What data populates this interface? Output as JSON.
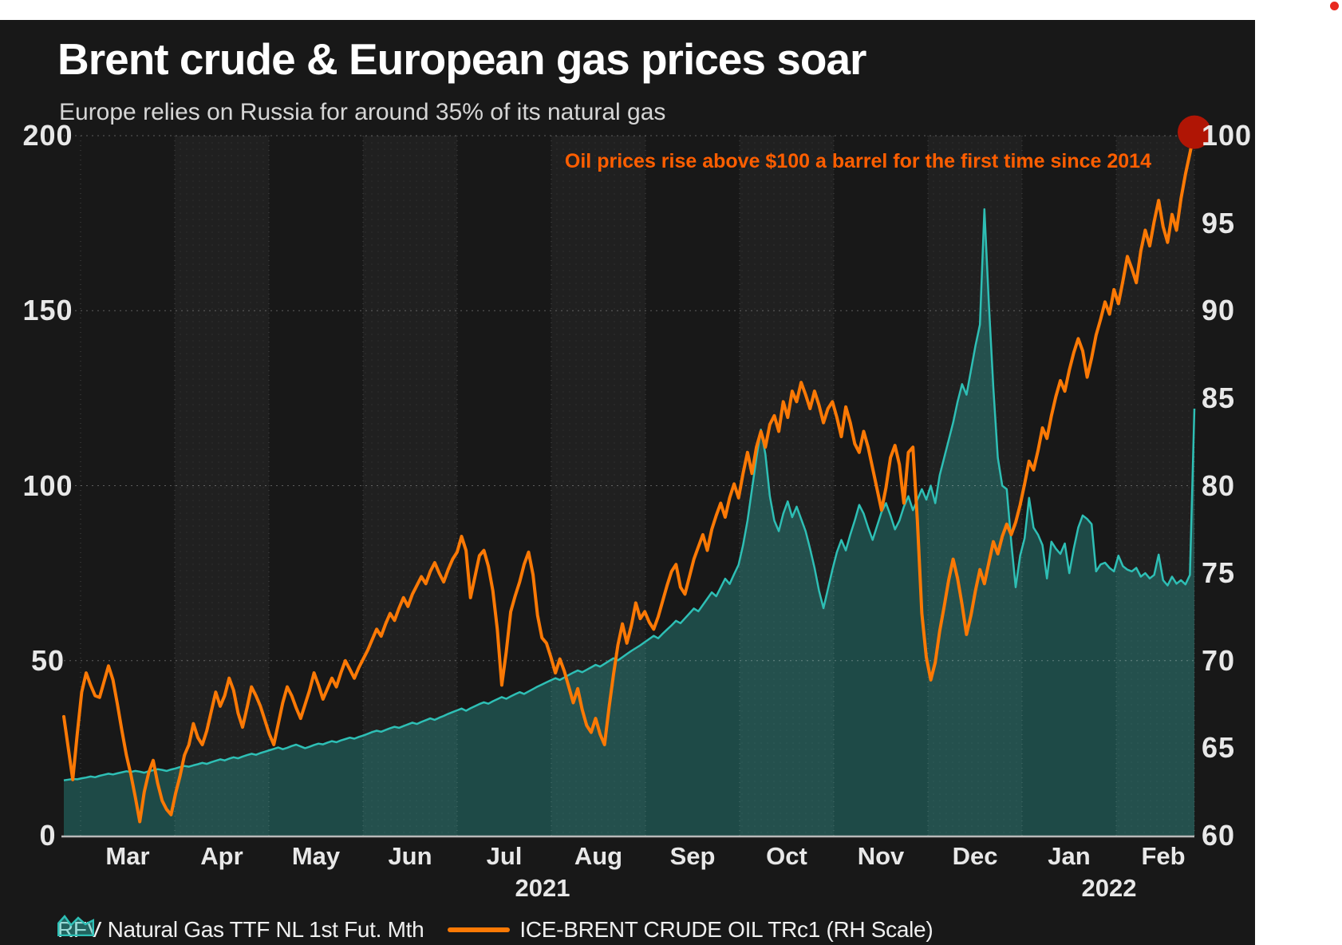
{
  "header": {
    "title": "Brent crude & European gas prices soar",
    "subtitle": "Europe relies on Russia for around 35% of its natural gas"
  },
  "annotation": {
    "text": "Oil prices rise above $100 a barrel for the first time since 2014",
    "color": "#ff5e00"
  },
  "record_indicator": {
    "color": "#e8281e"
  },
  "legend": {
    "items": [
      {
        "label": "RFV Natural Gas TTF NL 1st Fut. Mth",
        "swatch": "area-teal"
      },
      {
        "label": "ICE-BRENT CRUDE OIL TRc1 (RH Scale)",
        "swatch": "line-orange"
      }
    ]
  },
  "chart_data": {
    "type": "area+line",
    "title": "Brent crude & European gas prices soar",
    "subtitle": "Europe relies on Russia for around 35% of its natural gas",
    "background": "#181818",
    "grid": {
      "horizontal_dashed": true,
      "vertical_dashed": true,
      "alternating_month_bands": true
    },
    "x_axis": {
      "months": [
        "Mar",
        "Apr",
        "May",
        "Jun",
        "Jul",
        "Aug",
        "Sep",
        "Oct",
        "Nov",
        "Dec",
        "Jan",
        "Feb"
      ],
      "years": [
        "2021",
        "2022"
      ]
    },
    "left_axis": {
      "ticks": [
        200,
        150,
        100,
        50,
        0
      ],
      "range": [
        0,
        200
      ]
    },
    "right_axis": {
      "ticks": [
        100,
        95,
        90,
        85,
        80,
        75,
        70,
        65,
        60
      ],
      "range": [
        60,
        100
      ]
    },
    "series": [
      {
        "name": "RFV Natural Gas TTF NL 1st Fut. Mth",
        "type": "area",
        "axis": "left",
        "color": "#2ebfb5",
        "fill": "rgba(46,191,181,0.30)",
        "values": [
          15.8,
          16.0,
          16.2,
          16.1,
          16.4,
          16.6,
          16.9,
          16.7,
          17.1,
          17.4,
          17.7,
          17.5,
          17.8,
          18.1,
          18.4,
          18.2,
          18.5,
          18.3,
          18.0,
          18.4,
          18.7,
          19.0,
          18.8,
          18.5,
          18.9,
          19.2,
          19.6,
          19.9,
          19.7,
          20.1,
          20.4,
          20.8,
          20.5,
          21.0,
          21.4,
          21.8,
          21.5,
          22.0,
          22.4,
          22.1,
          22.6,
          23.0,
          23.4,
          23.1,
          23.6,
          24.0,
          24.4,
          24.8,
          25.2,
          24.7,
          25.1,
          25.6,
          26.0,
          25.5,
          25.0,
          25.4,
          25.9,
          26.3,
          26.1,
          26.6,
          27.0,
          26.7,
          27.2,
          27.6,
          28.0,
          27.7,
          28.2,
          28.6,
          29.1,
          29.6,
          30.0,
          29.7,
          30.2,
          30.7,
          31.1,
          30.8,
          31.3,
          31.8,
          32.3,
          31.9,
          32.5,
          33.0,
          33.5,
          33.1,
          33.7,
          34.2,
          34.8,
          35.3,
          35.8,
          36.3,
          35.7,
          36.4,
          37.0,
          37.6,
          38.1,
          37.7,
          38.4,
          39.0,
          39.6,
          39.1,
          39.8,
          40.4,
          41.0,
          40.5,
          41.2,
          41.9,
          42.6,
          43.2,
          43.8,
          44.4,
          45.0,
          44.5,
          45.2,
          45.9,
          46.6,
          47.2,
          46.7,
          47.4,
          48.1,
          48.8,
          48.3,
          49.1,
          49.9,
          50.7,
          50.1,
          51.0,
          51.9,
          52.8,
          53.6,
          54.4,
          55.3,
          56.2,
          57.1,
          56.4,
          57.7,
          58.9,
          60.1,
          61.4,
          60.7,
          62.1,
          63.5,
          64.9,
          64.1,
          65.9,
          67.7,
          69.5,
          68.4,
          70.9,
          73.4,
          71.9,
          74.7,
          77.4,
          83.0,
          90.0,
          99.0,
          108.0,
          116.0,
          109.0,
          97.0,
          90.0,
          87.0,
          92.0,
          95.5,
          91.0,
          94.0,
          90.5,
          87.0,
          82.0,
          76.5,
          70.0,
          65.0,
          70.5,
          76.0,
          81.0,
          84.5,
          81.5,
          86.0,
          90.0,
          94.5,
          92.0,
          88.0,
          84.5,
          88.5,
          92.5,
          95.0,
          91.5,
          87.5,
          90.0,
          94.0,
          97.0,
          93.0,
          96.0,
          99.0,
          96.0,
          100.0,
          95.0,
          103.0,
          108.0,
          113.0,
          118.0,
          124.0,
          129.0,
          126.0,
          133.0,
          140.0,
          146.0,
          179.0,
          152.0,
          128.0,
          108.0,
          100.0,
          99.0,
          84.0,
          71.0,
          80.0,
          85.0,
          96.5,
          88.0,
          86.0,
          83.0,
          73.5,
          84.0,
          82.0,
          80.5,
          83.5,
          75.0,
          82.0,
          88.0,
          91.5,
          90.5,
          89.0,
          75.5,
          77.5,
          78.0,
          76.5,
          75.5,
          80.0,
          77.0,
          76.0,
          75.5,
          76.5,
          74.0,
          75.0,
          73.5,
          74.5,
          80.3,
          73.0,
          71.5,
          74.0,
          72.0,
          73.0,
          71.8,
          74.5,
          122.0
        ]
      },
      {
        "name": "ICE-BRENT CRUDE OIL TRc1 (RH Scale)",
        "type": "line",
        "axis": "right",
        "color": "#fb7905",
        "values": [
          66.8,
          65.0,
          63.2,
          65.8,
          68.2,
          69.3,
          68.6,
          68.0,
          67.9,
          68.8,
          69.7,
          68.9,
          67.5,
          66.0,
          64.6,
          63.5,
          62.2,
          60.8,
          62.5,
          63.6,
          64.3,
          63.0,
          62.0,
          61.5,
          61.2,
          62.4,
          63.4,
          64.6,
          65.2,
          66.4,
          65.6,
          65.2,
          66.0,
          67.1,
          68.2,
          67.4,
          68.0,
          69.0,
          68.3,
          67.0,
          66.2,
          67.3,
          68.5,
          68.0,
          67.4,
          66.6,
          65.8,
          65.2,
          66.4,
          67.6,
          68.5,
          68.0,
          67.3,
          66.7,
          67.5,
          68.3,
          69.3,
          68.6,
          67.8,
          68.4,
          69.0,
          68.5,
          69.3,
          70.0,
          69.5,
          69.0,
          69.6,
          70.1,
          70.6,
          71.2,
          71.8,
          71.4,
          72.1,
          72.7,
          72.3,
          73.0,
          73.6,
          73.1,
          73.8,
          74.3,
          74.8,
          74.4,
          75.1,
          75.6,
          75.0,
          74.5,
          75.2,
          75.8,
          76.2,
          77.1,
          76.3,
          73.6,
          74.8,
          76.0,
          76.3,
          75.4,
          74.0,
          71.8,
          68.6,
          70.5,
          72.8,
          73.7,
          74.5,
          75.5,
          76.2,
          74.9,
          72.6,
          71.3,
          71.0,
          70.2,
          69.3,
          70.1,
          69.4,
          68.5,
          67.6,
          68.4,
          67.2,
          66.3,
          65.9,
          66.7,
          65.8,
          65.2,
          67.3,
          69.2,
          70.9,
          72.1,
          71.0,
          72.0,
          73.3,
          72.4,
          72.8,
          72.2,
          71.8,
          72.5,
          73.4,
          74.3,
          75.1,
          75.5,
          74.2,
          73.8,
          74.8,
          75.8,
          76.5,
          77.2,
          76.3,
          77.5,
          78.3,
          79.0,
          78.2,
          79.3,
          80.1,
          79.3,
          80.7,
          81.9,
          80.7,
          82.2,
          83.1,
          82.2,
          83.5,
          84.0,
          83.1,
          84.8,
          83.9,
          85.4,
          84.8,
          85.9,
          85.2,
          84.4,
          85.4,
          84.6,
          83.6,
          84.4,
          84.8,
          83.9,
          82.8,
          84.5,
          83.6,
          82.4,
          81.9,
          83.1,
          82.2,
          81.0,
          79.8,
          78.6,
          79.9,
          81.6,
          82.3,
          81.2,
          79.0,
          81.9,
          82.2,
          78.0,
          72.7,
          70.2,
          68.9,
          69.9,
          71.7,
          73.1,
          74.6,
          75.8,
          74.7,
          73.2,
          71.5,
          72.6,
          74.0,
          75.2,
          74.4,
          75.6,
          76.8,
          76.1,
          77.1,
          77.8,
          77.2,
          77.9,
          78.9,
          80.1,
          81.4,
          80.9,
          82.0,
          83.3,
          82.7,
          84.0,
          85.1,
          86.0,
          85.4,
          86.6,
          87.6,
          88.4,
          87.7,
          86.2,
          87.3,
          88.6,
          89.5,
          90.5,
          89.8,
          91.2,
          90.4,
          91.7,
          93.1,
          92.4,
          91.6,
          93.4,
          94.6,
          93.7,
          95.1,
          96.3,
          94.8,
          93.9,
          95.5,
          94.6,
          96.4,
          97.8,
          99.0,
          100.2
        ]
      }
    ],
    "end_marker": {
      "series": "ICE-BRENT CRUDE OIL TRc1 (RH Scale)",
      "at": "last",
      "value": 100.2,
      "color": "#b01505"
    }
  }
}
